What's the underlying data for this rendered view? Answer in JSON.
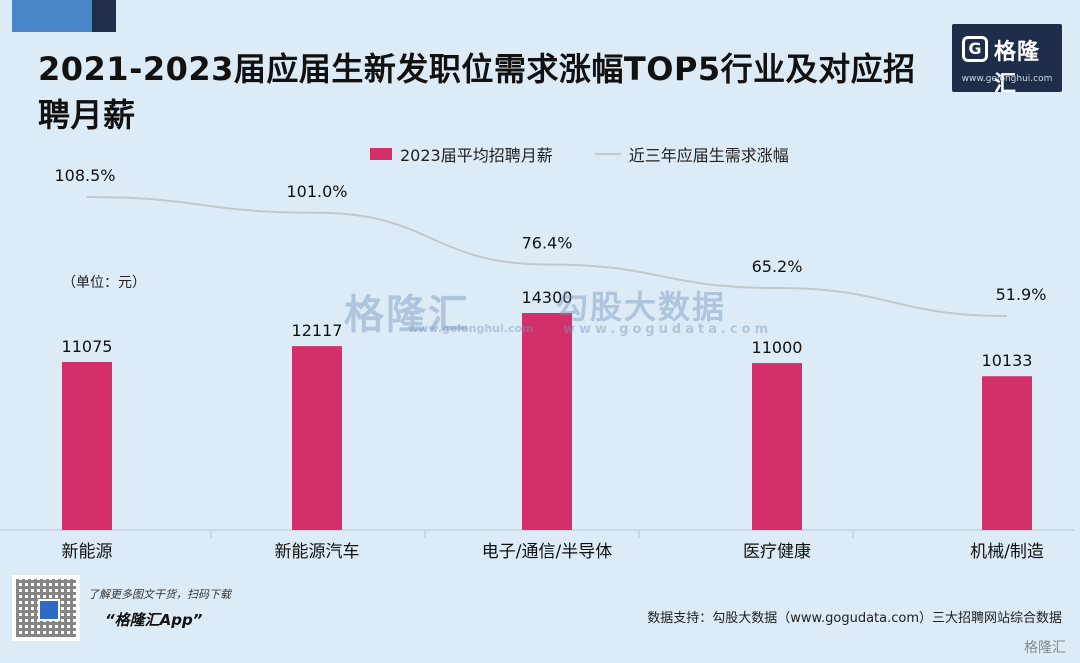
{
  "title": "2021-2023届应届生新发职位需求涨幅TOP5行业及对应招聘月薪",
  "logo": {
    "name": "格隆汇",
    "url": "www.gelonghui.com",
    "mark": "G"
  },
  "legend": {
    "bar": "2023届平均招聘月薪",
    "line": "近三年应届生需求涨幅"
  },
  "unit_label": "（单位：元）",
  "watermark": {
    "main": "格隆汇",
    "sub": "勾股大数据",
    "url_main": "www.gelonghui.com",
    "url_sub": "www.gogudata.com"
  },
  "promo": {
    "line1": "了解更多图文干货，扫码下载",
    "line2": "“格隆汇App”"
  },
  "source": "数据支持：勾股大数据（www.gogudata.com）三大招聘网站综合数据",
  "corner_mark": "格隆汇",
  "colors": {
    "bar": "#d22f6b",
    "line": "#c3c7cc",
    "background": "#dcebf6"
  },
  "chart_data": {
    "type": "bar",
    "categories": [
      "新能源",
      "新能源汽车",
      "电子/通信/半导体",
      "医疗健康",
      "机械/制造"
    ],
    "series": [
      {
        "name": "2023届平均招聘月薪",
        "type": "bar",
        "values": [
          11075,
          12117,
          14300,
          11000,
          10133
        ],
        "labels": [
          "11075",
          "12117",
          "14300",
          "11000",
          "10133"
        ]
      },
      {
        "name": "近三年应届生需求涨幅",
        "type": "line",
        "values": [
          108.5,
          101.0,
          76.4,
          65.2,
          51.9
        ],
        "labels": [
          "108.5%",
          "101.0%",
          "76.4%",
          "65.2%",
          "51.9%"
        ]
      }
    ],
    "legend_position": "top",
    "grid": false
  }
}
